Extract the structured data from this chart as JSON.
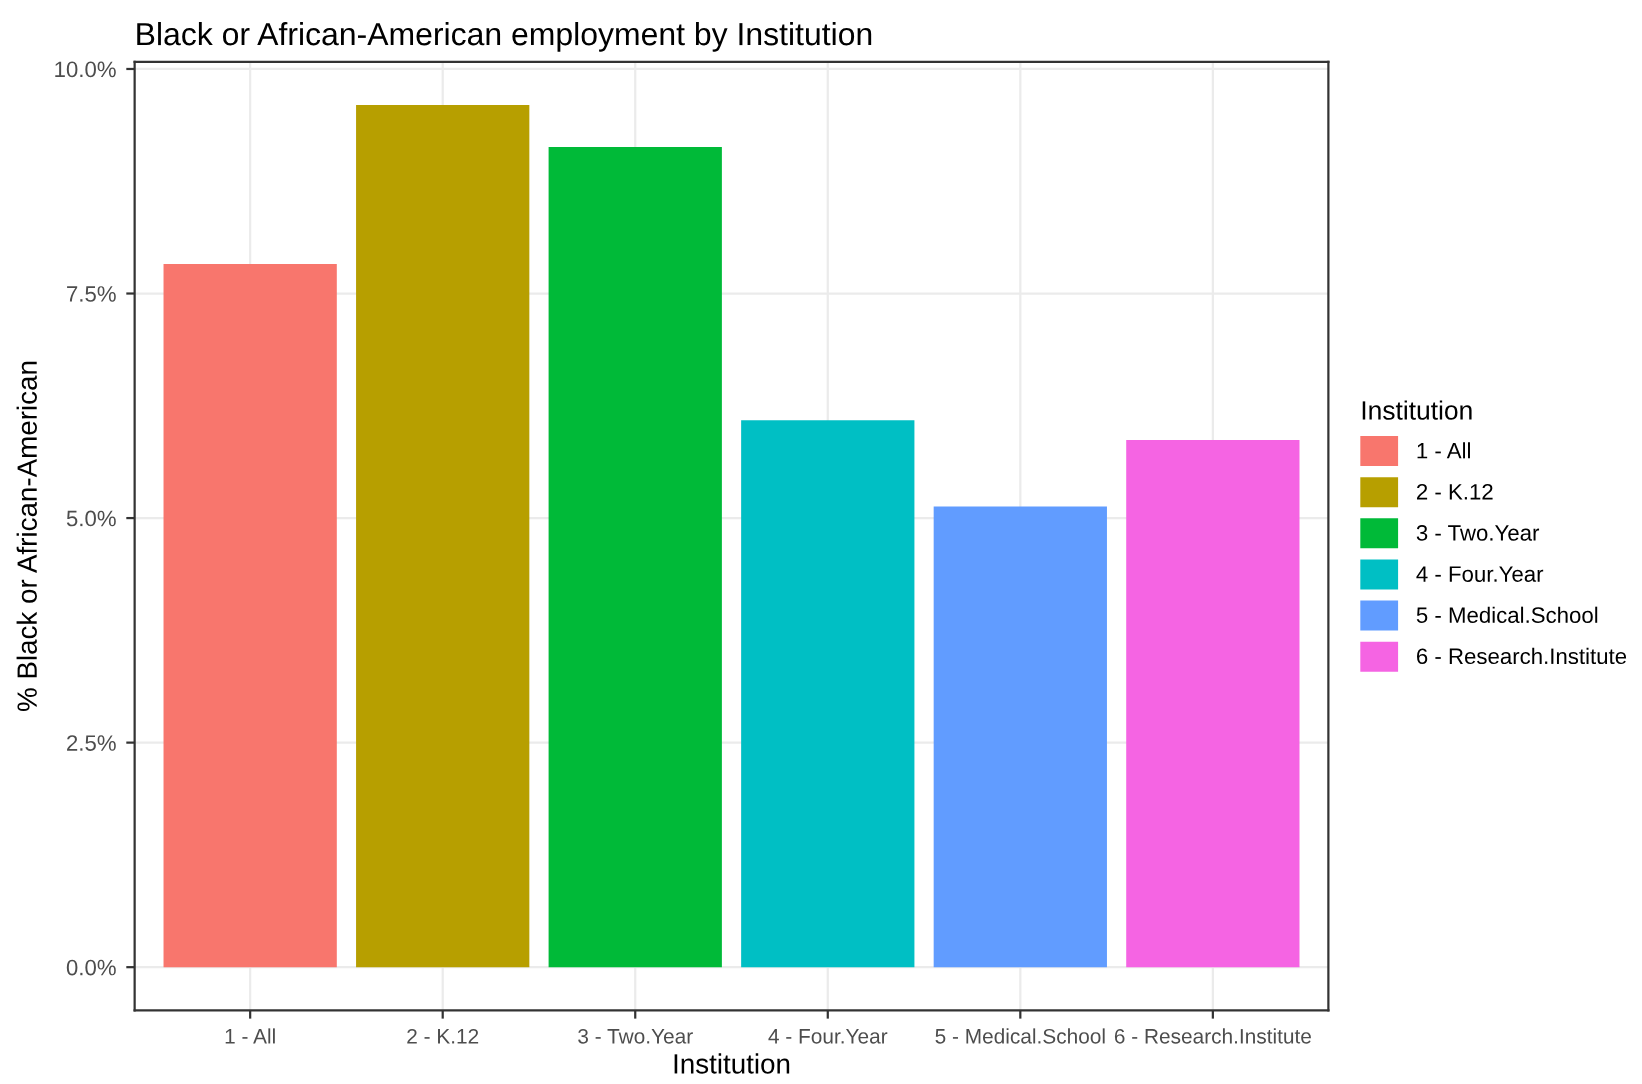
{
  "chart_data": {
    "type": "bar",
    "title": "Black or African-American employment by Institution",
    "xlabel": "Institution",
    "ylabel": "% Black or African-American",
    "legend_title": "Institution",
    "categories": [
      "1 - All",
      "2 - K.12",
      "3 - Two.Year",
      "4 - Four.Year",
      "5 - Medical.School",
      "6 - Research.Institute"
    ],
    "series": [
      {
        "name": "1 - All",
        "color": "#f8766d",
        "values": [
          7.83,
          null,
          null,
          null,
          null,
          null
        ]
      },
      {
        "name": "2 - K.12",
        "color": "#b79f00",
        "values": [
          null,
          9.6,
          null,
          null,
          null,
          null
        ]
      },
      {
        "name": "3 - Two.Year",
        "color": "#00ba38",
        "values": [
          null,
          null,
          9.13,
          null,
          null,
          null
        ]
      },
      {
        "name": "4 - Four.Year",
        "color": "#00bfc4",
        "values": [
          null,
          null,
          null,
          6.09,
          null,
          null
        ]
      },
      {
        "name": "5 - Medical.School",
        "color": "#619cff",
        "values": [
          null,
          null,
          null,
          null,
          5.13,
          null
        ]
      },
      {
        "name": "6 - Research.Institute",
        "color": "#f564e3",
        "values": [
          null,
          null,
          null,
          null,
          null,
          5.87
        ]
      }
    ],
    "ylim": [
      -0.48,
      10.08
    ],
    "yticks": [
      {
        "value": 0,
        "label": "0.0%"
      },
      {
        "value": 2.5,
        "label": "2.5%"
      },
      {
        "value": 5,
        "label": "5.0%"
      },
      {
        "value": 7.5,
        "label": "7.5%"
      },
      {
        "value": 10,
        "label": "10.0%"
      }
    ],
    "grid": true,
    "legend": "right"
  }
}
